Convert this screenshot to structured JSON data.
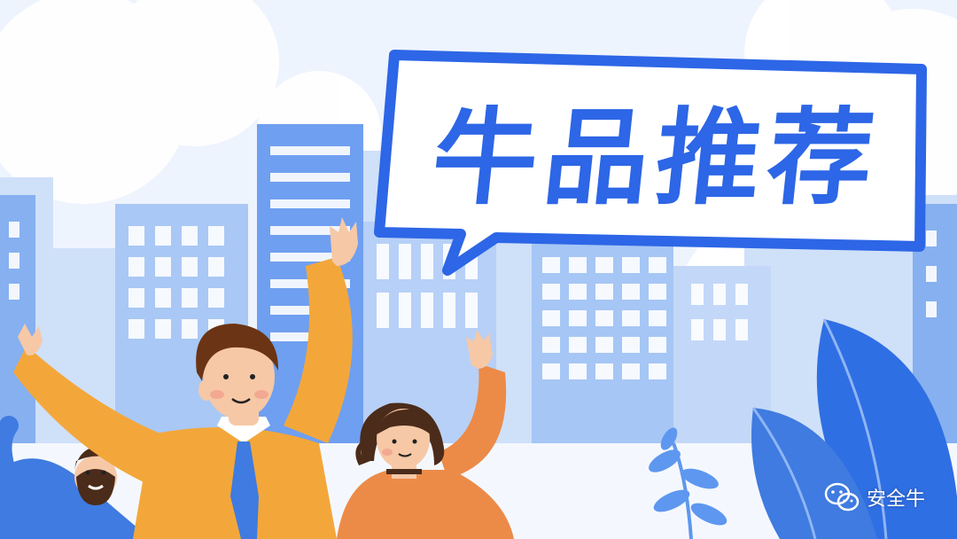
{
  "banner": {
    "title": "牛品推荐",
    "watermark_text": "安全牛",
    "watermark_icon": "wechat-icon"
  },
  "colors": {
    "sky": "#eef4fd",
    "cloud": "#ffffff",
    "building_light": "#b9d2f7",
    "building_mid": "#8bb3f2",
    "building_dark": "#5f93ea",
    "accent_blue": "#2d66e6",
    "shirt_yellow": "#f3a73a",
    "shirt_orange": "#ec8b48",
    "shirt_blue": "#3f7be0",
    "leaf_blue": "#2f6fe4"
  }
}
